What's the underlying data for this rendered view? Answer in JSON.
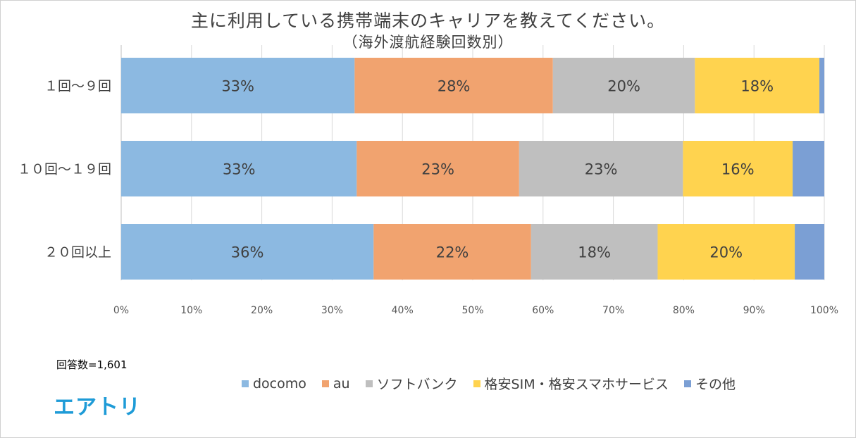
{
  "chart_data": {
    "type": "bar",
    "orientation": "horizontal",
    "stacked": true,
    "title": "主に利用している携帯端末のキャリアを教えてください。",
    "subtitle": "（海外渡航経験回数別）",
    "categories": [
      "１回～９回",
      "１０回～１９回",
      "２０回以上"
    ],
    "series": [
      {
        "name": "docomo",
        "color": "#8cb9e1",
        "values": [
          33.2,
          33.5,
          35.9
        ],
        "labels": [
          "33%",
          "33%",
          "36%"
        ]
      },
      {
        "name": "au",
        "color": "#f1a36f",
        "values": [
          28.2,
          23.1,
          22.4
        ],
        "labels": [
          "28%",
          "23%",
          "22%"
        ]
      },
      {
        "name": "ソフトバンク",
        "color": "#bfbfbf",
        "values": [
          20.2,
          23.3,
          18.0
        ],
        "labels": [
          "20%",
          "23%",
          "18%"
        ]
      },
      {
        "name": "格安SIM・格安スマホサービス",
        "color": "#ffd34f",
        "values": [
          17.7,
          15.6,
          19.5
        ],
        "labels": [
          "18%",
          "16%",
          "20%"
        ]
      },
      {
        "name": "その他",
        "color": "#7b9fd4",
        "values": [
          0.7,
          4.5,
          4.2
        ],
        "labels": [
          "",
          "",
          ""
        ]
      }
    ],
    "xlim": [
      0,
      100
    ],
    "xticks": [
      "0%",
      "10%",
      "20%",
      "30%",
      "40%",
      "50%",
      "60%",
      "70%",
      "80%",
      "90%",
      "100%"
    ],
    "grid": true,
    "legend_position": "bottom"
  },
  "note": "回答数=1,601",
  "logo_text": "エアトリ"
}
